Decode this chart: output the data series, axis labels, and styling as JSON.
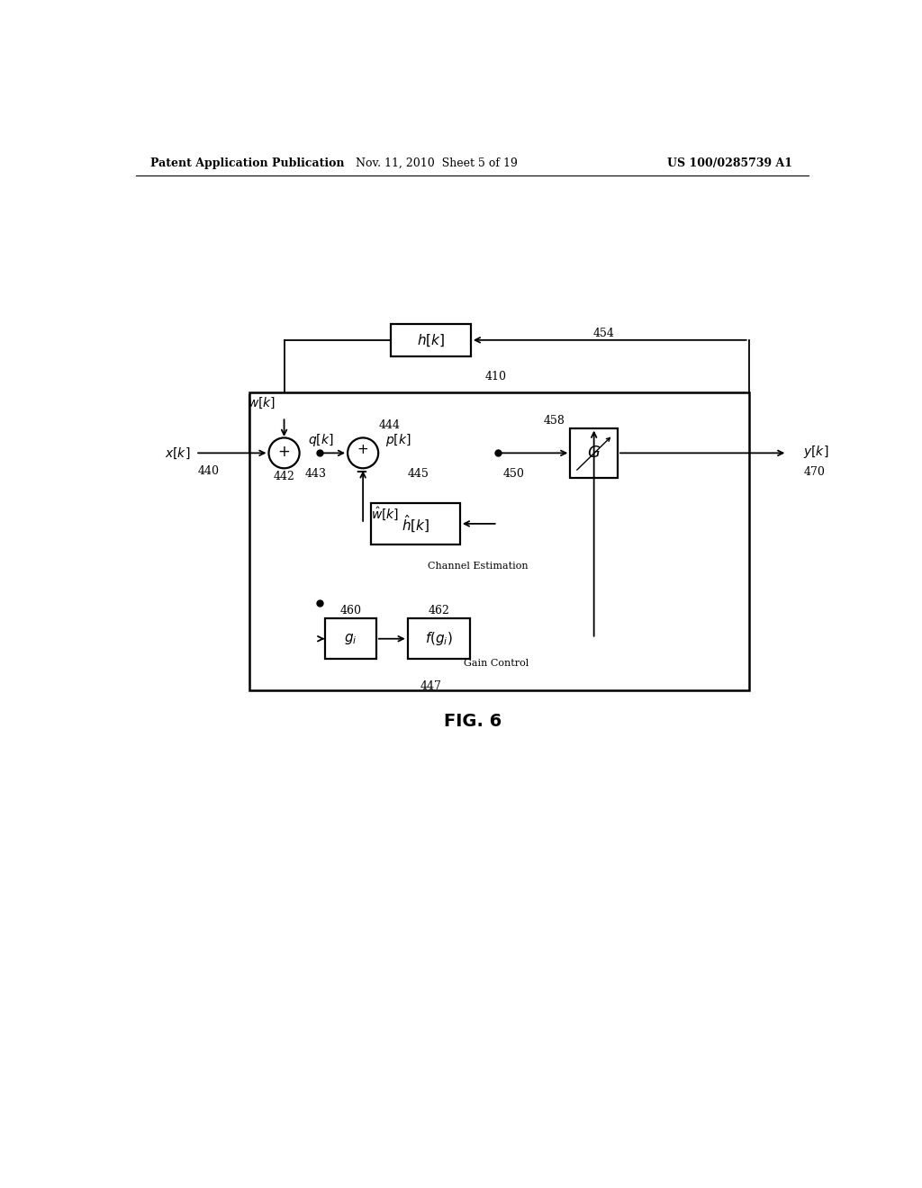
{
  "header_left": "Patent Application Publication",
  "header_center": "Nov. 11, 2010  Sheet 5 of 19",
  "header_right": "US 100/0285739 A1",
  "fig_label": "FIG. 6",
  "bg_color": "#ffffff",
  "line_color": "#000000"
}
